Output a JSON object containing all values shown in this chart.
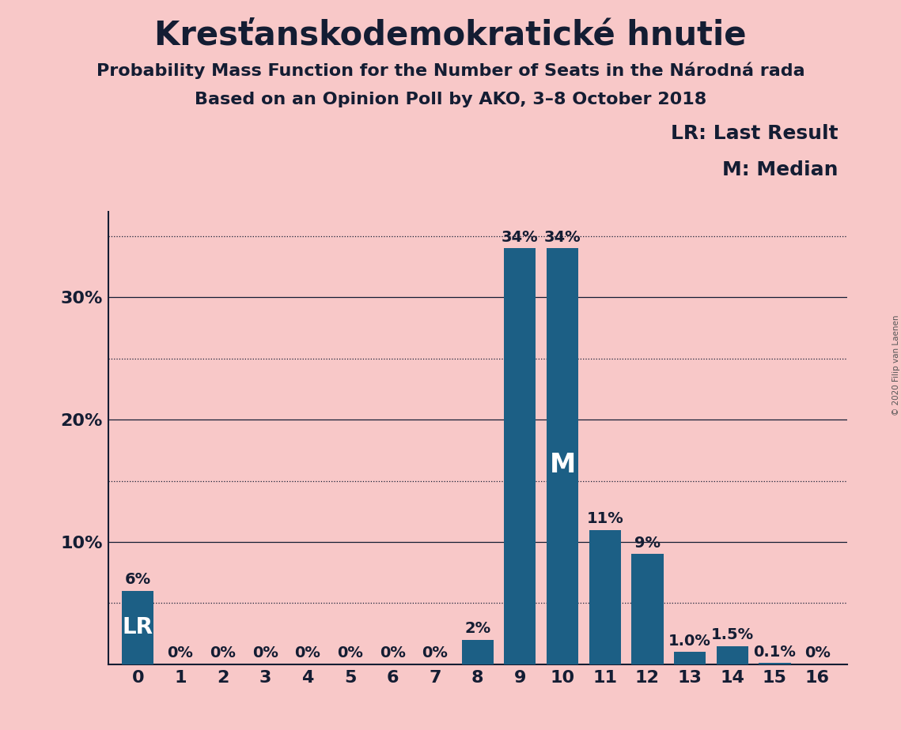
{
  "title": "Kresťanskodemokratické hnutie",
  "subtitle1": "Probability Mass Function for the Number of Seats in the Národná rada",
  "subtitle2": "Based on an Opinion Poll by AKO, 3–8 October 2018",
  "watermark": "© 2020 Filip van Laenen",
  "categories": [
    0,
    1,
    2,
    3,
    4,
    5,
    6,
    7,
    8,
    9,
    10,
    11,
    12,
    13,
    14,
    15,
    16
  ],
  "values": [
    6,
    0,
    0,
    0,
    0,
    0,
    0,
    0,
    2,
    34,
    34,
    11,
    9,
    1.0,
    1.5,
    0.1,
    0
  ],
  "labels": [
    "6%",
    "0%",
    "0%",
    "0%",
    "0%",
    "0%",
    "0%",
    "0%",
    "2%",
    "34%",
    "34%",
    "11%",
    "9%",
    "1.0%",
    "1.5%",
    "0.1%",
    "0%"
  ],
  "show_label": [
    true,
    true,
    true,
    true,
    true,
    true,
    true,
    true,
    true,
    true,
    true,
    true,
    true,
    true,
    true,
    true,
    true
  ],
  "bar_color": "#1c5f85",
  "background_color": "#f8c8c8",
  "text_color": "#141d33",
  "ylim": [
    0,
    37
  ],
  "solid_yticks": [
    10,
    20,
    30
  ],
  "dotted_yticks": [
    5,
    15,
    25,
    35
  ],
  "lr_bar_idx": 0,
  "median_bar_idx": 10,
  "legend_lr": "LR: Last Result",
  "legend_m": "M: Median",
  "lr_label": "LR",
  "m_label": "M",
  "title_fontsize": 30,
  "subtitle_fontsize": 16,
  "tick_fontsize": 16,
  "legend_fontsize": 18,
  "annotation_fontsize": 14,
  "lr_fontsize": 20,
  "m_fontsize": 24
}
